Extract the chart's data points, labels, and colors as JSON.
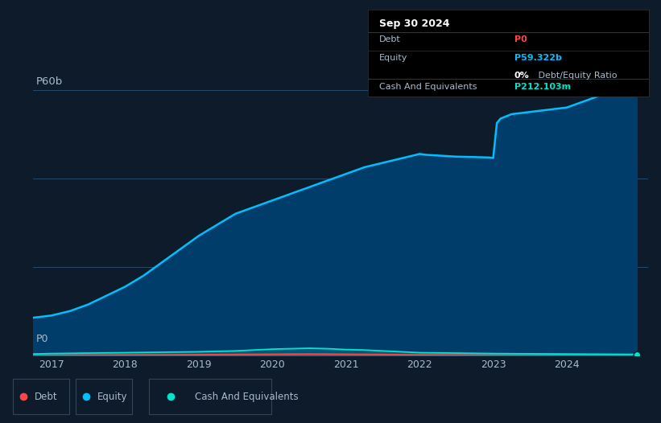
{
  "bg_color": "#0d1b2a",
  "plot_bg_color": "#0d1b2a",
  "grid_color": "#2a4a6a",
  "equity_color": "#00bfff",
  "equity_fill_color": "#003d6b",
  "debt_color": "#ff4444",
  "cash_color": "#00e5cc",
  "text_color": "#aabbcc",
  "white_color": "#ffffff",
  "ylim": [
    0,
    65
  ],
  "ylabel_text": "P60b",
  "y0_text": "P0",
  "x_ticks": [
    2017,
    2018,
    2019,
    2020,
    2021,
    2022,
    2023,
    2024
  ],
  "tooltip_title": "Sep 30 2024",
  "tooltip_debt_label": "Debt",
  "tooltip_debt_value": "P0",
  "tooltip_equity_label": "Equity",
  "tooltip_equity_value": "P59.322b",
  "tooltip_ratio_bold": "0%",
  "tooltip_ratio_rest": " Debt/Equity Ratio",
  "tooltip_cash_label": "Cash And Equivalents",
  "tooltip_cash_value": "P212.103m",
  "legend_items": [
    "Debt",
    "Equity",
    "Cash And Equivalents"
  ],
  "equity_x": [
    2016.75,
    2017.0,
    2017.25,
    2017.5,
    2017.75,
    2018.0,
    2018.25,
    2018.5,
    2018.75,
    2019.0,
    2019.25,
    2019.5,
    2019.75,
    2020.0,
    2020.25,
    2020.5,
    2020.75,
    2021.0,
    2021.25,
    2021.5,
    2021.75,
    2022.0,
    2022.1,
    2022.2,
    2022.3,
    2022.4,
    2022.5,
    2022.75,
    2022.95,
    2023.0,
    2023.05,
    2023.1,
    2023.25,
    2023.5,
    2023.75,
    2024.0,
    2024.25,
    2024.5,
    2024.75,
    2024.95
  ],
  "equity_y": [
    8.5,
    9.0,
    10.0,
    11.5,
    13.5,
    15.5,
    18.0,
    21.0,
    24.0,
    27.0,
    29.5,
    32.0,
    33.5,
    35.0,
    36.5,
    38.0,
    39.5,
    41.0,
    42.5,
    43.5,
    44.5,
    45.5,
    45.3,
    45.2,
    45.1,
    45.0,
    44.9,
    44.8,
    44.7,
    44.6,
    52.5,
    53.5,
    54.5,
    55.0,
    55.5,
    56.0,
    57.5,
    59.0,
    59.3,
    59.322
  ],
  "debt_x": [
    2016.75,
    2017.0,
    2017.5,
    2018.0,
    2018.5,
    2019.0,
    2019.5,
    2020.0,
    2020.25,
    2020.5,
    2020.75,
    2021.0,
    2021.25,
    2021.5,
    2021.75,
    2022.0,
    2022.5,
    2023.0,
    2023.5,
    2024.0,
    2024.5,
    2024.95
  ],
  "debt_y": [
    0.03,
    0.05,
    0.08,
    0.1,
    0.12,
    0.15,
    0.2,
    0.25,
    0.28,
    0.3,
    0.28,
    0.25,
    0.22,
    0.2,
    0.15,
    0.12,
    0.1,
    0.08,
    0.05,
    0.03,
    0.01,
    0.0
  ],
  "cash_x": [
    2016.75,
    2017.0,
    2017.5,
    2018.0,
    2018.5,
    2019.0,
    2019.5,
    2020.0,
    2020.25,
    2020.5,
    2020.75,
    2021.0,
    2021.25,
    2021.5,
    2021.75,
    2022.0,
    2022.5,
    2023.0,
    2023.5,
    2024.0,
    2024.5,
    2024.95
  ],
  "cash_y": [
    0.3,
    0.4,
    0.5,
    0.6,
    0.7,
    0.8,
    1.0,
    1.4,
    1.5,
    1.6,
    1.5,
    1.3,
    1.2,
    1.0,
    0.8,
    0.6,
    0.5,
    0.4,
    0.35,
    0.3,
    0.25,
    0.212
  ]
}
